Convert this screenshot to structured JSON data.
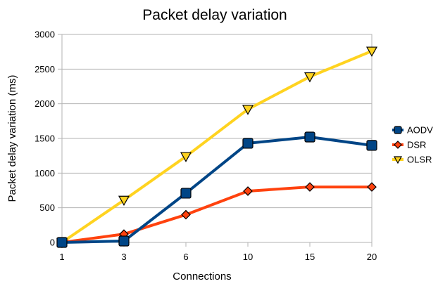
{
  "chart_data": {
    "type": "line",
    "title": "Packet delay variation",
    "xlabel": "Connections",
    "ylabel": "Packet delay variation (ms)",
    "categories": [
      "1",
      "3",
      "6",
      "10",
      "15",
      "20"
    ],
    "ylim": [
      0,
      3000
    ],
    "yticks": [
      0,
      500,
      1000,
      1500,
      2000,
      2500,
      3000
    ],
    "grid": true,
    "legend_position": "right",
    "series": [
      {
        "name": "AODV",
        "color": "#004586",
        "marker": "square",
        "values": [
          0,
          20,
          710,
          1430,
          1520,
          1400
        ]
      },
      {
        "name": "DSR",
        "color": "#ff420e",
        "marker": "diamond",
        "values": [
          0,
          120,
          400,
          740,
          800,
          800
        ]
      },
      {
        "name": "OLSR",
        "color": "#ffd320",
        "marker": "triangle-down",
        "values": [
          0,
          610,
          1240,
          1920,
          2390,
          2760
        ]
      }
    ]
  }
}
